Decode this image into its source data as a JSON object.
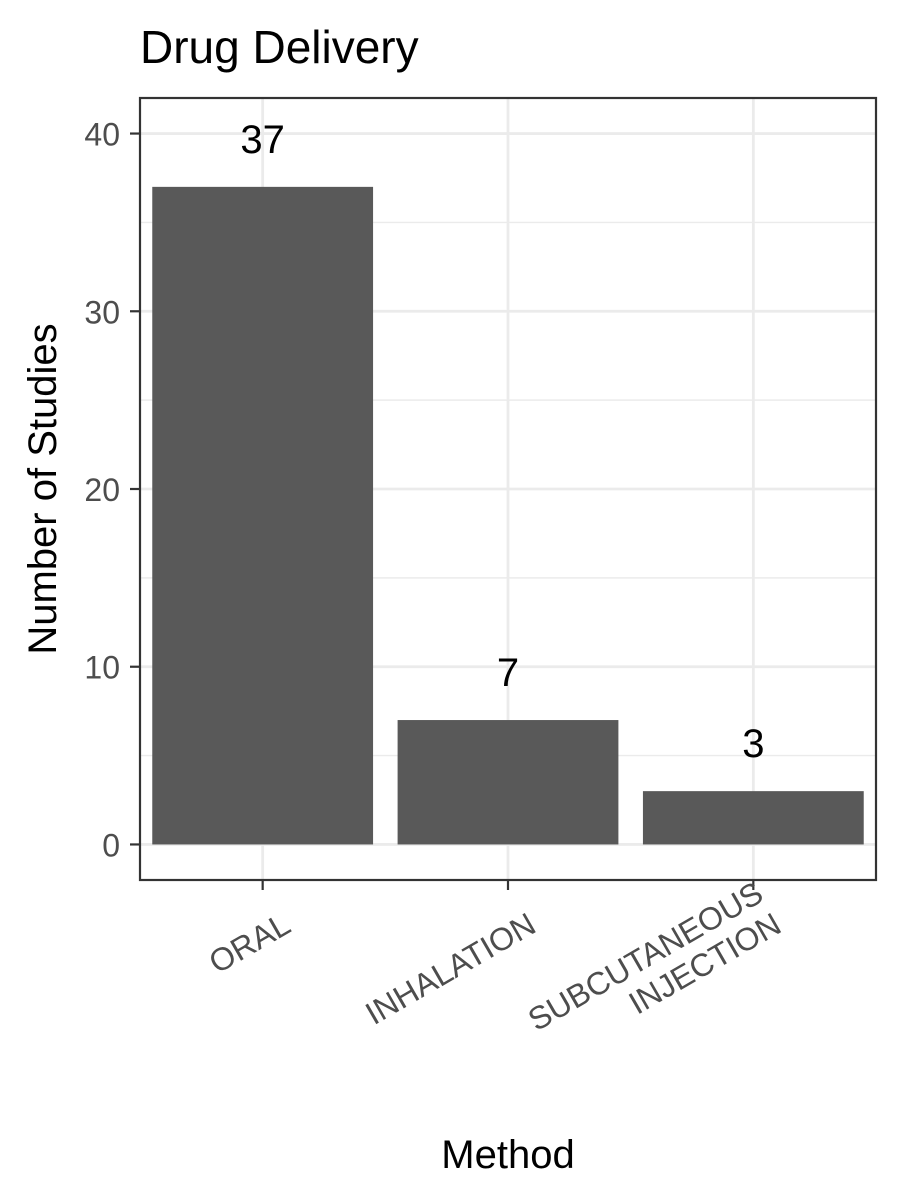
{
  "chart_data": {
    "type": "bar",
    "title": "Drug Delivery",
    "xlabel": "Method",
    "ylabel": "Number of Studies",
    "categories": [
      [
        "ORAL"
      ],
      [
        "INHALATION"
      ],
      [
        "SUBCUTANEOUS",
        "INJECTION"
      ]
    ],
    "values": [
      37,
      7,
      3
    ],
    "data_labels": [
      "37",
      "7",
      "3"
    ],
    "yticks": [
      0,
      10,
      20,
      30,
      40
    ],
    "ylim": [
      -2,
      42
    ],
    "grid": true,
    "legend": "none"
  },
  "colors": {
    "bar": "#595959",
    "grid": "#ebebeb",
    "panel_border": "#333333",
    "tick_text": "#4d4d4d",
    "background": "#ffffff"
  }
}
